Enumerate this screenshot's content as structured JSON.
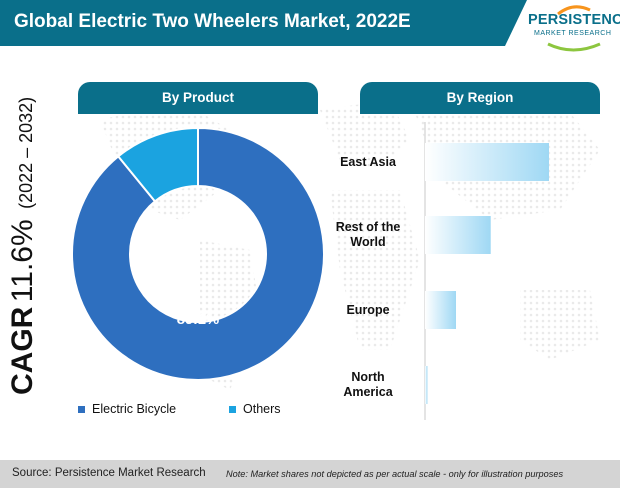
{
  "header": {
    "title": "Global Electric Two Wheelers Market, 2022E"
  },
  "logo": {
    "name": "PERSISTENCE",
    "subtitle": "MARKET RESEARCH"
  },
  "cagr": {
    "label": "CAGR",
    "value": "11.6%",
    "period": "(2022 – 2032)"
  },
  "tabs": {
    "product": "By Product",
    "region": "By Region"
  },
  "colors": {
    "brand": "#0a6f8a",
    "electric_bicycle": "#2e6fbf",
    "others": "#1ba3e0",
    "region_bar_start": "#ffffff",
    "region_bar_end": "#9fd8f4"
  },
  "chart_data": [
    {
      "type": "pie",
      "variant": "donut",
      "title": "By Product",
      "labels": [
        "Electric Bicycle",
        "Others"
      ],
      "values": [
        89.1,
        10.9
      ],
      "data_labels": [
        "89.1%",
        ""
      ],
      "legend_placement": "bottom"
    },
    {
      "type": "bar",
      "orientation": "horizontal",
      "title": "By Region",
      "categories": [
        "East Asia",
        "Rest of the World",
        "Europe",
        "North America"
      ],
      "category_lines": [
        [
          "East Asia"
        ],
        [
          "Rest of the",
          "World"
        ],
        [
          "Europe"
        ],
        [
          "North",
          "America"
        ]
      ],
      "values": [
        100,
        53,
        25,
        2
      ],
      "note": "Market shares not depicted as per actual scale"
    }
  ],
  "footer": {
    "source": "Source: Persistence Market Research",
    "note": "Note: Market shares not depicted as per actual scale - only for illustration purposes"
  }
}
